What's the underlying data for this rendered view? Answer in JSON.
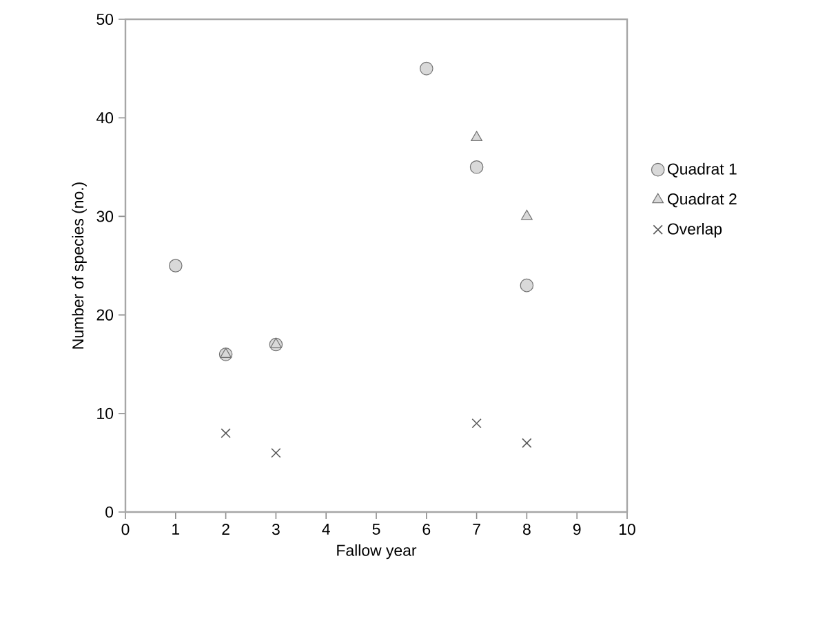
{
  "chart_data": {
    "type": "scatter",
    "xlabel": "Fallow year",
    "ylabel": "Number of species (no.)",
    "xlim": [
      0,
      10
    ],
    "ylim": [
      0,
      50
    ],
    "xticks": [
      0,
      1,
      2,
      3,
      4,
      5,
      6,
      7,
      8,
      9,
      10
    ],
    "yticks": [
      0,
      10,
      20,
      30,
      40,
      50
    ],
    "legend": "right",
    "series": [
      {
        "name": "Quadrat 1",
        "color": "#d9d9d9",
        "marker": "circle",
        "x": [
          1,
          2,
          3,
          6,
          7,
          8
        ],
        "values": [
          25,
          16,
          17,
          45,
          35,
          23
        ]
      },
      {
        "name": "Quadrat 2",
        "color": "#d9d9d9",
        "marker": "triangle",
        "x": [
          2,
          3,
          7,
          8
        ],
        "values": [
          16,
          17,
          38,
          30
        ]
      },
      {
        "name": "Overlap",
        "color": "#595959",
        "marker": "cross",
        "x": [
          2,
          3,
          7,
          8
        ],
        "values": [
          8,
          6,
          9,
          7
        ]
      }
    ]
  }
}
